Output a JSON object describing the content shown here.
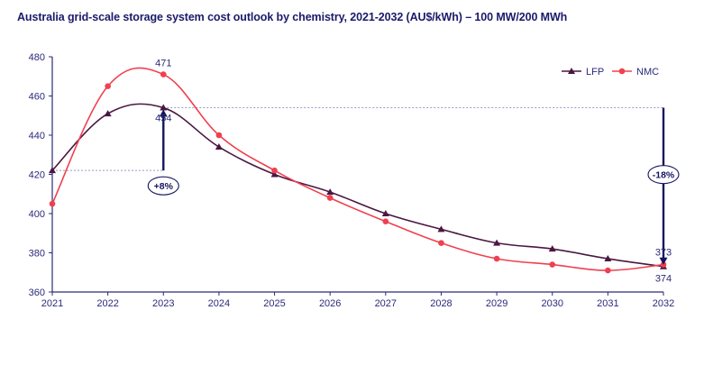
{
  "chart_data": {
    "type": "line",
    "title": "Australia grid-scale storage system cost outlook by chemistry, 2021-2032 (AU$/kWh) – 100 MW/200 MWh",
    "xlabel": "",
    "ylabel": "",
    "x": [
      "2021",
      "2022",
      "2023",
      "2024",
      "2025",
      "2026",
      "2027",
      "2028",
      "2029",
      "2030",
      "2031",
      "2032"
    ],
    "ylim": [
      360,
      480
    ],
    "yticks": [
      360,
      380,
      400,
      420,
      440,
      460,
      480
    ],
    "grid": false,
    "legend_position": "top-right",
    "series": [
      {
        "name": "LFP",
        "color": "#4a1742",
        "marker": "triangle",
        "values": [
          422,
          451,
          454,
          434,
          420,
          411,
          400,
          392,
          385,
          382,
          377,
          373
        ]
      },
      {
        "name": "NMC",
        "color": "#f0404f",
        "marker": "circle",
        "values": [
          405,
          465,
          471,
          440,
          422,
          408,
          396,
          385,
          377,
          374,
          371,
          374
        ]
      }
    ],
    "annotations": [
      {
        "type": "point-label",
        "x": "2023",
        "value": 471,
        "text": "471",
        "position": "above"
      },
      {
        "type": "point-label",
        "x": "2023",
        "value": 454,
        "text": "454",
        "position": "below"
      },
      {
        "type": "point-label",
        "x": "2032",
        "value": 373,
        "text": "373",
        "position": "above"
      },
      {
        "type": "point-label",
        "x": "2032",
        "value": 374,
        "text": "374",
        "position": "below"
      },
      {
        "type": "change-arrow",
        "x": "2023",
        "from": 422,
        "to": 454,
        "text": "+8%"
      },
      {
        "type": "change-arrow",
        "x": "2032",
        "from": 454,
        "to": 373,
        "text": "-18%"
      }
    ]
  },
  "colors": {
    "axis": "#2a2a7a",
    "arrow": "#14145e",
    "dotted": "#9a9ac8"
  }
}
